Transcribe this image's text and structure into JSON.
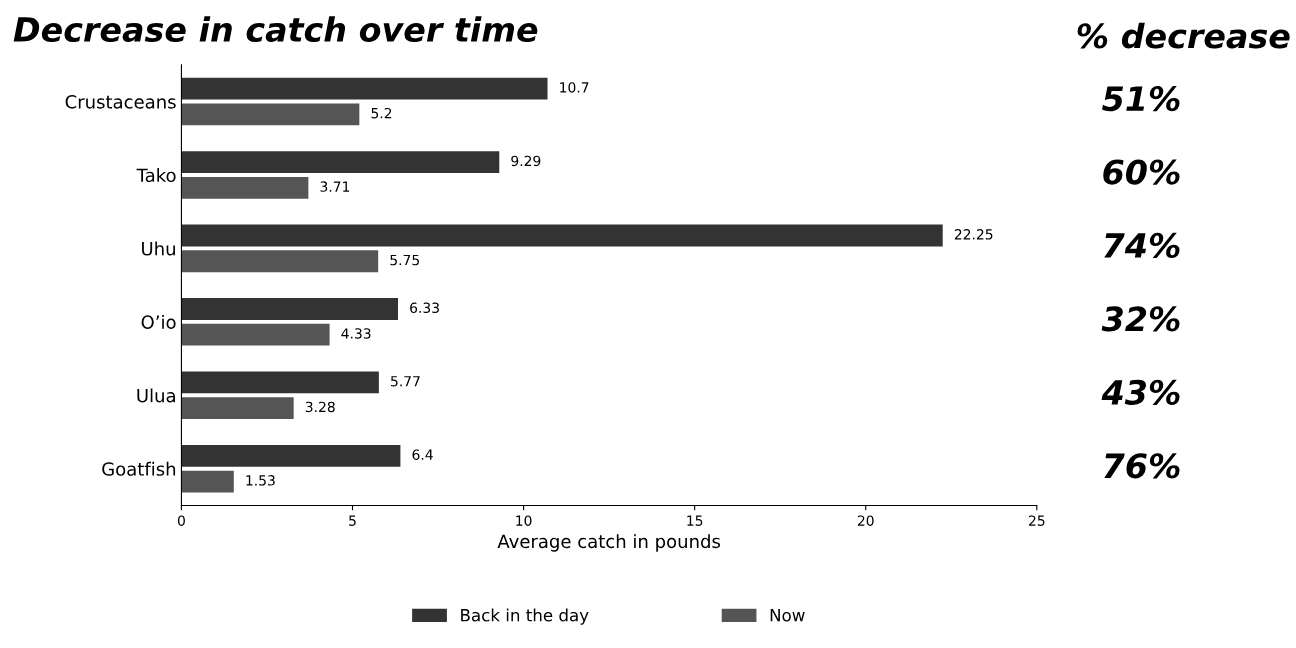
{
  "chart_data": {
    "type": "bar",
    "orientation": "horizontal",
    "title": "Decrease in catch over time",
    "xlabel": "Average catch in pounds",
    "categories": [
      "Crustaceans",
      "Tako",
      "Uhu",
      "O’io",
      "Ulua",
      "Goatfish"
    ],
    "series": [
      {
        "name": "Back in the day",
        "color": "#333333",
        "values": [
          10.7,
          9.29,
          22.25,
          6.33,
          5.77,
          6.4
        ]
      },
      {
        "name": "Now",
        "color": "#555555",
        "values": [
          5.2,
          3.71,
          5.75,
          4.33,
          3.28,
          1.53
        ]
      }
    ],
    "xlim": [
      0,
      25
    ],
    "xticks": [
      0,
      5,
      10,
      15,
      20,
      25
    ],
    "data_labels": true,
    "grid": false,
    "legend": "bottom",
    "annotations": [
      "% decrease",
      "51%",
      "60%",
      "74%",
      "32%",
      "43%",
      "76%"
    ]
  }
}
